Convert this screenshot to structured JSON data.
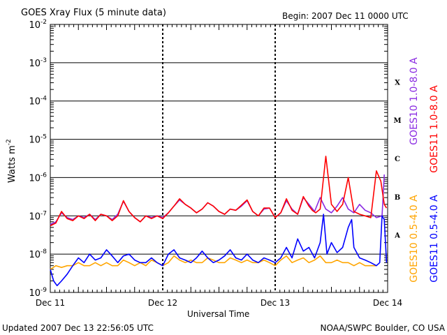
{
  "header": {
    "title": "GOES Xray Flux (5 minute data)",
    "begin": "Begin:  2007 Dec 11 0000 UTC"
  },
  "footer": {
    "updated": "Updated 2007 Dec 13 22:56:05 UTC",
    "credit": "NOAA/SWPC Boulder, CO USA"
  },
  "chart_data": {
    "type": "line",
    "title": "GOES Xray Flux (5 minute data)",
    "xlabel": "Universal Time",
    "ylabel": "Watts m-2",
    "ylabel_base": "Watts m",
    "ylabel_sup": "-2",
    "y_scale": "log",
    "ylim": [
      1e-09,
      0.01
    ],
    "xlim": [
      0,
      3
    ],
    "y_ticks": [
      {
        "base": "10",
        "exp": "-2",
        "value": 0.01
      },
      {
        "base": "10",
        "exp": "-3",
        "value": 0.001
      },
      {
        "base": "10",
        "exp": "-4",
        "value": 0.0001
      },
      {
        "base": "10",
        "exp": "-5",
        "value": 1e-05
      },
      {
        "base": "10",
        "exp": "-6",
        "value": 1e-06
      },
      {
        "base": "10",
        "exp": "-7",
        "value": 1e-07
      },
      {
        "base": "10",
        "exp": "-8",
        "value": 1e-08
      },
      {
        "base": "10",
        "exp": "-9",
        "value": 1e-09
      }
    ],
    "x_ticks": [
      {
        "label": "Dec 11",
        "value": 0
      },
      {
        "label": "Dec 12",
        "value": 1
      },
      {
        "label": "Dec 13",
        "value": 2
      },
      {
        "label": "Dec 14",
        "value": 3
      }
    ],
    "flare_classes": [
      {
        "label": "X",
        "value": 0.000316
      },
      {
        "label": "M",
        "value": 3.16e-05
      },
      {
        "label": "C",
        "value": 3.16e-06
      },
      {
        "label": "B",
        "value": 3.16e-07
      },
      {
        "label": "A",
        "value": 3.16e-08
      }
    ],
    "grid": true,
    "legend_placement": "right",
    "legend": [
      {
        "label": "GOES10 1.0-8.0 A",
        "color": "#8a2be2"
      },
      {
        "label": "GOES11 1.0-8.0 A",
        "color": "#ff0000"
      },
      {
        "label": "GOES10 0.5-4.0 A",
        "color": "#ffa500"
      },
      {
        "label": "GOES11 0.5-4.0 A",
        "color": "#0000ff"
      }
    ],
    "series": [
      {
        "name": "GOES10 1.0-8.0 A",
        "color": "#8a2be2",
        "x": [
          0,
          0.05,
          0.1,
          0.15,
          0.2,
          0.25,
          0.3,
          0.35,
          0.4,
          0.45,
          0.5,
          0.55,
          0.6,
          0.65,
          0.7,
          0.75,
          0.8,
          0.85,
          0.9,
          0.95,
          1.0,
          1.05,
          1.1,
          1.15,
          1.2,
          1.25,
          1.3,
          1.35,
          1.4,
          1.45,
          1.5,
          1.55,
          1.6,
          1.65,
          1.7,
          1.75,
          1.8,
          1.85,
          1.9,
          1.95,
          2.0,
          2.05,
          2.1,
          2.15,
          2.2,
          2.25,
          2.3,
          2.35,
          2.4,
          2.45,
          2.5,
          2.55,
          2.6,
          2.65,
          2.7,
          2.75,
          2.8,
          2.85,
          2.9,
          2.95,
          2.97
        ],
        "y": [
          6e-08,
          7e-08,
          1.2e-07,
          9e-08,
          8e-08,
          1e-07,
          9e-08,
          1.1e-07,
          8e-08,
          1.1e-07,
          1e-07,
          8e-08,
          1.1e-07,
          2.4e-07,
          1.3e-07,
          9e-08,
          7e-08,
          1e-07,
          9e-08,
          1e-07,
          9e-08,
          1.2e-07,
          1.8e-07,
          2.6e-07,
          2e-07,
          1.6e-07,
          1.2e-07,
          1.5e-07,
          2.2e-07,
          1.8e-07,
          1.3e-07,
          1.1e-07,
          1.5e-07,
          1.4e-07,
          1.8e-07,
          2.5e-07,
          1.3e-07,
          1e-07,
          1.5e-07,
          1.6e-07,
          9e-08,
          1.2e-07,
          2.5e-07,
          1.5e-07,
          1.1e-07,
          3e-07,
          2e-07,
          1.3e-07,
          3e-07,
          1.5e-07,
          1.2e-07,
          1.8e-07,
          3e-07,
          1.5e-07,
          1.2e-07,
          2e-07,
          1.4e-07,
          1.2e-07,
          9e-08,
          1e-07,
          1.2e-06
        ]
      },
      {
        "name": "GOES11 1.0-8.0 A",
        "color": "#ff0000",
        "x": [
          0,
          0.05,
          0.1,
          0.15,
          0.2,
          0.25,
          0.3,
          0.35,
          0.4,
          0.45,
          0.5,
          0.55,
          0.6,
          0.65,
          0.7,
          0.75,
          0.8,
          0.85,
          0.9,
          0.95,
          1.0,
          1.05,
          1.1,
          1.15,
          1.2,
          1.25,
          1.3,
          1.35,
          1.4,
          1.45,
          1.5,
          1.55,
          1.6,
          1.65,
          1.7,
          1.75,
          1.8,
          1.85,
          1.9,
          1.95,
          2.0,
          2.05,
          2.1,
          2.15,
          2.2,
          2.25,
          2.3,
          2.33,
          2.36,
          2.4,
          2.45,
          2.5,
          2.55,
          2.6,
          2.65,
          2.7,
          2.75,
          2.8,
          2.85,
          2.9,
          2.94,
          2.97,
          2.99
        ],
        "y": [
          5.5e-08,
          6.5e-08,
          1.3e-07,
          8.5e-08,
          7.5e-08,
          1e-07,
          8.5e-08,
          1.1e-07,
          7.5e-08,
          1.1e-07,
          1e-07,
          7.5e-08,
          1e-07,
          2.5e-07,
          1.3e-07,
          9e-08,
          7e-08,
          1e-07,
          8.5e-08,
          1e-07,
          8.5e-08,
          1.2e-07,
          1.8e-07,
          2.8e-07,
          2e-07,
          1.6e-07,
          1.2e-07,
          1.5e-07,
          2.2e-07,
          1.8e-07,
          1.3e-07,
          1.1e-07,
          1.5e-07,
          1.4e-07,
          1.9e-07,
          2.6e-07,
          1.3e-07,
          1e-07,
          1.6e-07,
          1.6e-07,
          9e-08,
          1.2e-07,
          2.8e-07,
          1.4e-07,
          1.1e-07,
          3.2e-07,
          1.8e-07,
          1.4e-07,
          1.2e-07,
          1.5e-07,
          3.6e-06,
          2e-07,
          1.3e-07,
          2e-07,
          1e-06,
          1.3e-07,
          1.1e-07,
          1e-07,
          9e-08,
          1.5e-06,
          8e-07,
          2e-07,
          1.6e-07
        ]
      },
      {
        "name": "GOES10 0.5-4.0 A",
        "color": "#ffa500",
        "x": [
          0,
          0.05,
          0.1,
          0.15,
          0.2,
          0.25,
          0.3,
          0.35,
          0.4,
          0.45,
          0.5,
          0.55,
          0.6,
          0.65,
          0.7,
          0.75,
          0.8,
          0.85,
          0.9,
          0.95,
          1.0,
          1.05,
          1.1,
          1.15,
          1.2,
          1.25,
          1.3,
          1.35,
          1.4,
          1.45,
          1.5,
          1.55,
          1.6,
          1.65,
          1.7,
          1.75,
          1.8,
          1.85,
          1.9,
          1.95,
          2.0,
          2.05,
          2.1,
          2.15,
          2.2,
          2.25,
          2.3,
          2.35,
          2.4,
          2.45,
          2.5,
          2.55,
          2.6,
          2.65,
          2.7,
          2.75,
          2.8,
          2.85,
          2.9
        ],
        "y": [
          4e-09,
          5e-09,
          4.5e-09,
          5e-09,
          5e-09,
          6e-09,
          5e-09,
          5e-09,
          6e-09,
          5e-09,
          6e-09,
          5e-09,
          5e-09,
          7e-09,
          6e-09,
          5e-09,
          6e-09,
          5e-09,
          7e-09,
          6e-09,
          5e-09,
          6e-09,
          9e-09,
          7e-09,
          6e-09,
          7e-09,
          6e-09,
          6e-09,
          8e-09,
          7e-09,
          6e-09,
          6e-09,
          8e-09,
          7e-09,
          6e-09,
          7e-09,
          6e-09,
          6e-09,
          7e-09,
          6e-09,
          5e-09,
          7e-09,
          9e-09,
          6e-09,
          7e-09,
          8e-09,
          6e-09,
          7e-09,
          9e-09,
          6e-09,
          6e-09,
          7e-09,
          6e-09,
          6e-09,
          5e-09,
          6e-09,
          5e-09,
          5e-09,
          5e-09
        ]
      },
      {
        "name": "GOES11 0.5-4.0 A",
        "color": "#0000ff",
        "x": [
          0,
          0.03,
          0.06,
          0.1,
          0.15,
          0.2,
          0.25,
          0.3,
          0.35,
          0.4,
          0.45,
          0.5,
          0.55,
          0.6,
          0.65,
          0.7,
          0.75,
          0.8,
          0.85,
          0.9,
          0.95,
          1.0,
          1.05,
          1.1,
          1.15,
          1.2,
          1.25,
          1.3,
          1.35,
          1.4,
          1.45,
          1.5,
          1.55,
          1.6,
          1.65,
          1.7,
          1.75,
          1.8,
          1.85,
          1.9,
          1.95,
          2.0,
          2.05,
          2.1,
          2.15,
          2.2,
          2.25,
          2.3,
          2.35,
          2.4,
          2.43,
          2.46,
          2.5,
          2.55,
          2.6,
          2.65,
          2.68,
          2.7,
          2.75,
          2.8,
          2.85,
          2.9,
          2.93,
          2.95,
          2.97,
          2.99
        ],
        "y": [
          4e-09,
          2e-09,
          1.5e-09,
          2e-09,
          3e-09,
          5e-09,
          8e-09,
          6e-09,
          1e-08,
          7e-09,
          8e-09,
          1.3e-08,
          9e-09,
          6e-09,
          9e-09,
          1e-08,
          7e-09,
          6e-09,
          6e-09,
          8e-09,
          6e-09,
          5e-09,
          1e-08,
          1.3e-08,
          8e-09,
          7e-09,
          6e-09,
          8e-09,
          1.2e-08,
          8e-09,
          6e-09,
          7e-09,
          9e-09,
          1.3e-08,
          8e-09,
          7e-09,
          1e-08,
          7e-09,
          6e-09,
          8e-09,
          7e-09,
          6e-09,
          8e-09,
          1.5e-08,
          8e-09,
          2.5e-08,
          1.2e-08,
          1.5e-08,
          8e-09,
          2e-08,
          1.1e-07,
          1e-08,
          2e-08,
          1.1e-08,
          1.5e-08,
          5e-08,
          8e-08,
          1.5e-08,
          8e-09,
          7e-09,
          6e-09,
          5e-09,
          6e-09,
          1e-07,
          8e-08,
          6e-09
        ]
      }
    ]
  }
}
